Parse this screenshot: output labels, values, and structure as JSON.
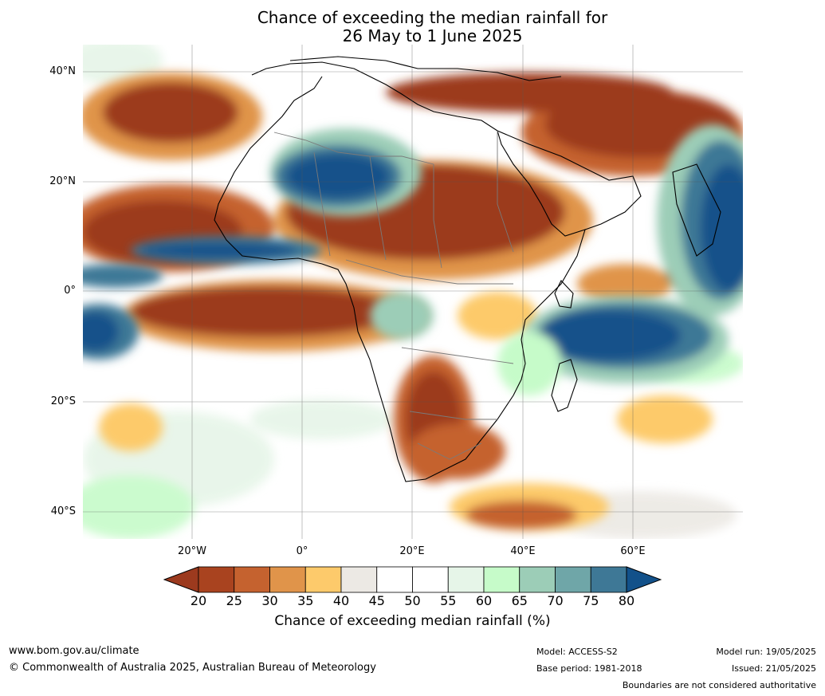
{
  "title_line1": "Chance of exceeding the median rainfall for",
  "title_line2": "26 May to 1 June 2025",
  "lat_labels": [
    "40°N",
    "20°N",
    "0°",
    "20°S",
    "40°S"
  ],
  "lon_labels": [
    "20°W",
    "0°",
    "20°E",
    "40°E",
    "60°E"
  ],
  "colorbar": {
    "ticks": [
      "20",
      "25",
      "30",
      "35",
      "40",
      "45",
      "50",
      "55",
      "60",
      "65",
      "70",
      "75",
      "80"
    ],
    "colors": [
      "#9c3a1e",
      "#a9431f",
      "#c5622f",
      "#e0944a",
      "#fdca6b",
      "#ece9e4",
      "#ffffff",
      "#ffffff",
      "#e6f5e8",
      "#c6fbc9",
      "#9ccdb7",
      "#6fa6a8",
      "#3e7896",
      "#12518a"
    ],
    "label": "Chance of exceeding median rainfall (%)"
  },
  "footer": {
    "website": "www.bom.gov.au/climate",
    "copyright": "© Commonwealth of Australia 2025, Australian Bureau of Meteorology",
    "model": "Model: ACCESS-S2",
    "base_period": "Base period: 1981-2018",
    "model_run": "Model run: 19/05/2025",
    "issued": "Issued: 21/05/2025",
    "disclaimer": "Boundaries are not considered authoritative"
  }
}
